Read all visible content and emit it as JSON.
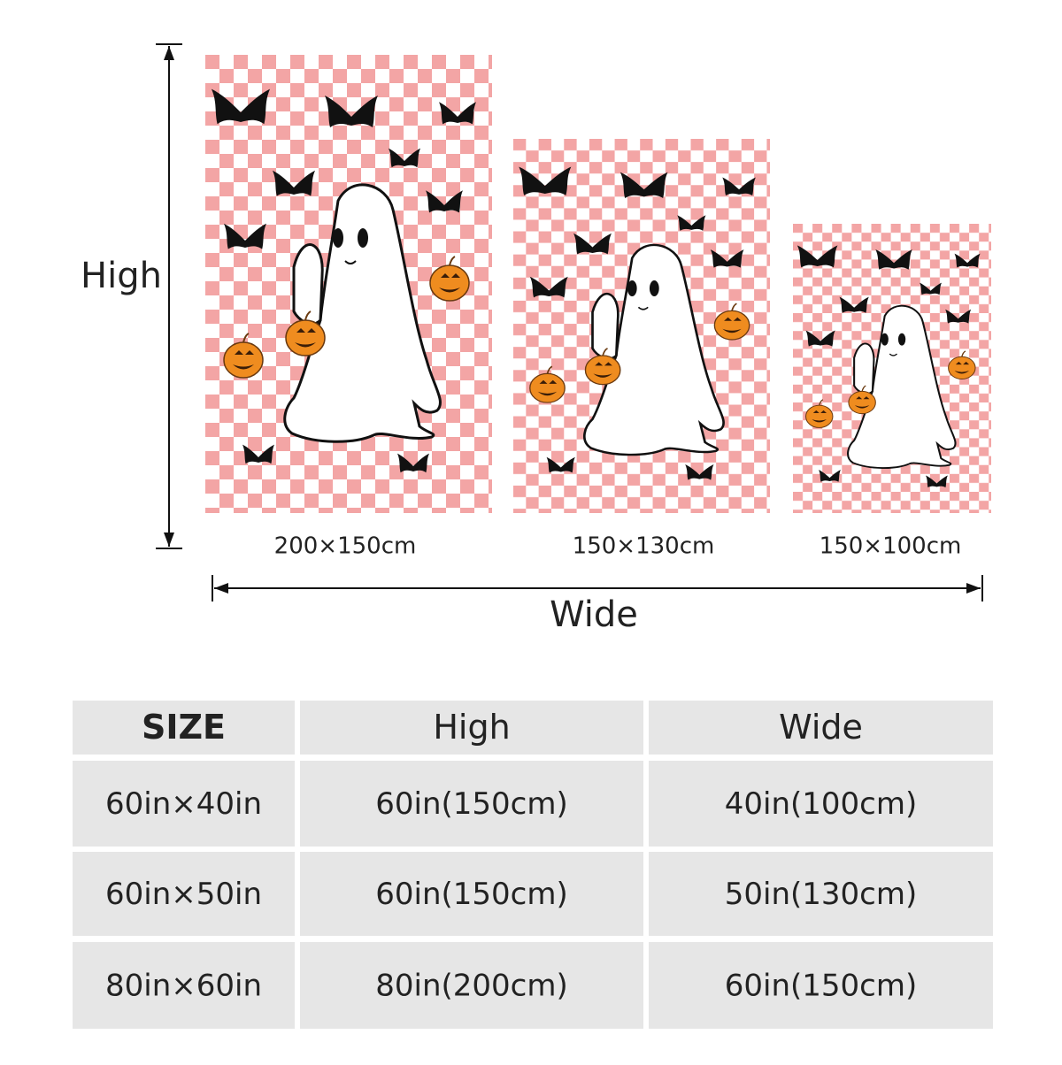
{
  "dimension_labels": {
    "height": "High",
    "width": "Wide"
  },
  "blankets": [
    {
      "size_label": "200×150cm"
    },
    {
      "size_label": "150×130cm"
    },
    {
      "size_label": "150×100cm"
    }
  ],
  "table": {
    "header": [
      "SIZE",
      "High",
      "Wide"
    ],
    "rows": [
      [
        "60in×40in",
        "60in(150cm)",
        "40in(100cm)"
      ],
      [
        "60in×50in",
        "60in(150cm)",
        "50in(130cm)"
      ],
      [
        "80in×60in",
        "80in(200cm)",
        "60in(150cm)"
      ]
    ]
  }
}
